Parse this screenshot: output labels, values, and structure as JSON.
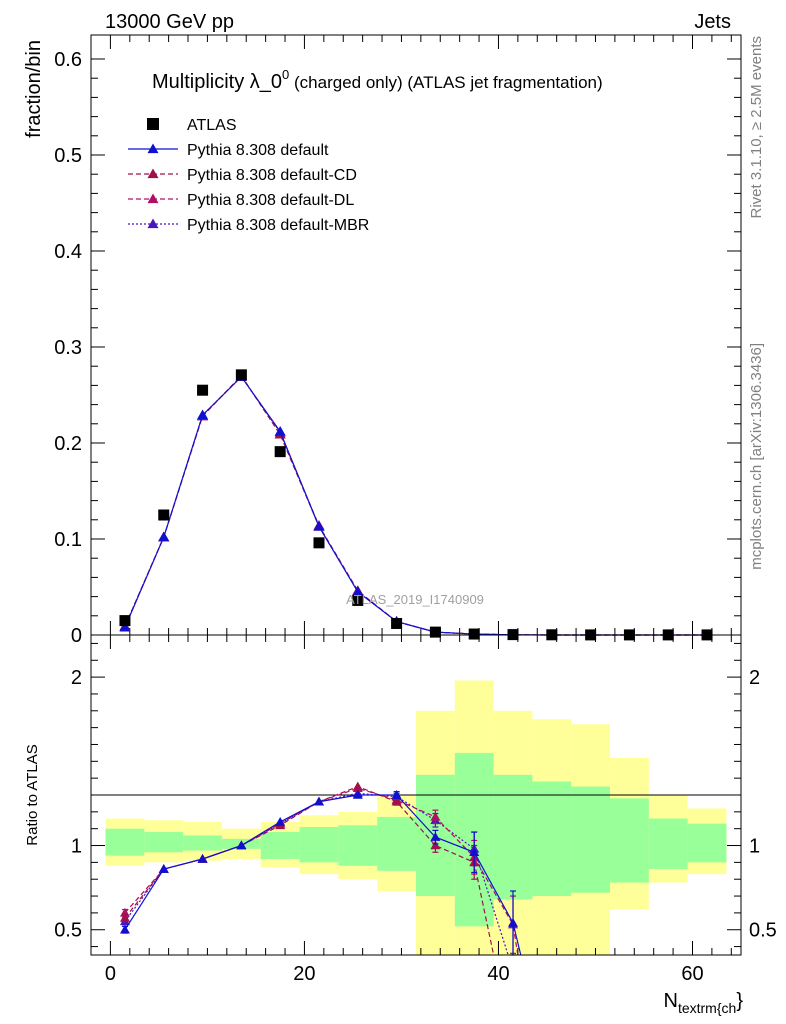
{
  "header": {
    "left": "13000 GeV pp",
    "right": "Jets"
  },
  "side_labels": {
    "rivet": "Rivet 3.1.10, ≥ 2.5M events",
    "mcplots": "mcplots.cern.ch [arXiv:1306.3436]"
  },
  "watermark": "ATLAS_2019_I1740909",
  "colors": {
    "atlas": "#000000",
    "default": "#1010d0",
    "default_cd": "#a0104a",
    "default_dl": "#b01060",
    "default_mbr": "#4a18b8",
    "band_inner": "#99ff99",
    "band_outer": "#ffff99"
  },
  "chart_data": [
    {
      "type": "scatter",
      "title_main": "Multiplicity λ_0",
      "title_sup": "0",
      "title_rest": " (charged only) (ATLAS jet fragmentation)",
      "ylabel": "fraction/bin",
      "xlim": [
        -2,
        65
      ],
      "ylim": [
        0,
        0.625
      ],
      "yticks": [
        0,
        0.1,
        0.2,
        0.3,
        0.4,
        0.5,
        0.6
      ],
      "ytick_labels": [
        "0",
        "0.1",
        "0.2",
        "0.3",
        "0.4",
        "0.5",
        "0.6"
      ],
      "x": [
        1.5,
        5.5,
        9.5,
        13.5,
        17.5,
        21.5,
        25.5,
        29.5,
        33.5,
        37.5,
        41.5,
        45.5,
        49.5,
        53.5,
        57.5,
        61.5
      ],
      "legend": [
        "ATLAS",
        "Pythia 8.308 default",
        "Pythia 8.308 default-CD",
        "Pythia 8.308 default-DL",
        "Pythia 8.308 default-MBR"
      ],
      "legend_position": "top-left",
      "series": [
        {
          "name": "ATLAS",
          "style": "marker",
          "values": [
            0.015,
            0.125,
            0.255,
            0.271,
            0.191,
            0.096,
            0.036,
            0.012,
            0.003,
            0.001,
            0.0004,
            0.0002,
            0.0001,
            0.0001,
            0.0001,
            0.0001
          ]
        },
        {
          "name": "Pythia 8.308 default",
          "style": "solid",
          "values": [
            0.008,
            0.102,
            0.229,
            0.269,
            0.212,
            0.113,
            0.045,
            0.014,
            0.003,
            0.001,
            0.0002,
            0,
            0,
            0,
            0,
            0
          ]
        },
        {
          "name": "Pythia 8.308 default-CD",
          "style": "dashed",
          "values": [
            0.009,
            0.102,
            0.228,
            0.27,
            0.209,
            0.113,
            0.046,
            0.014,
            0.003,
            0.001,
            0.0002,
            0,
            0,
            0,
            0,
            0
          ]
        },
        {
          "name": "Pythia 8.308 default-DL",
          "style": "dashed",
          "values": [
            0.009,
            0.102,
            0.228,
            0.27,
            0.209,
            0.114,
            0.046,
            0.014,
            0.003,
            0.001,
            0.0002,
            0,
            0,
            0,
            0,
            0
          ]
        },
        {
          "name": "Pythia 8.308 default-MBR",
          "style": "dotted",
          "values": [
            0.009,
            0.102,
            0.229,
            0.269,
            0.211,
            0.113,
            0.045,
            0.014,
            0.003,
            0.001,
            0.0002,
            0,
            0,
            0,
            0,
            0
          ]
        }
      ]
    },
    {
      "type": "line",
      "ylabel": "Ratio to ATLAS",
      "xlabel_main": "N",
      "xlabel_sub": "textrm{ch",
      "xlabel_tail": "}",
      "xlim": [
        -2,
        65
      ],
      "ylim": [
        0.35,
        2.25
      ],
      "yticks": [
        0.5,
        1,
        2
      ],
      "ytick_labels": [
        "0.5",
        "1",
        "2"
      ],
      "xticks": [
        0,
        20,
        40,
        60
      ],
      "xtick_labels": [
        "0",
        "20",
        "40",
        "60"
      ],
      "bins": [
        [
          -0.5,
          3.5
        ],
        [
          3.5,
          7.5
        ],
        [
          7.5,
          11.5
        ],
        [
          11.5,
          15.5
        ],
        [
          15.5,
          19.5
        ],
        [
          19.5,
          23.5
        ],
        [
          23.5,
          27.5
        ],
        [
          27.5,
          31.5
        ],
        [
          31.5,
          35.5
        ],
        [
          35.5,
          39.5
        ],
        [
          39.5,
          43.5
        ],
        [
          43.5,
          47.5
        ],
        [
          47.5,
          51.5
        ],
        [
          51.5,
          55.5
        ],
        [
          55.5,
          59.5
        ],
        [
          59.5,
          63.5
        ]
      ],
      "band_inner": [
        [
          0.94,
          1.1
        ],
        [
          0.96,
          1.08
        ],
        [
          0.97,
          1.06
        ],
        [
          0.98,
          1.04
        ],
        [
          0.92,
          1.08
        ],
        [
          0.9,
          1.11
        ],
        [
          0.88,
          1.12
        ],
        [
          0.85,
          1.17
        ],
        [
          0.7,
          1.42
        ],
        [
          0.52,
          1.55
        ],
        [
          0.68,
          1.42
        ],
        [
          0.7,
          1.38
        ],
        [
          0.72,
          1.35
        ],
        [
          0.78,
          1.28
        ],
        [
          0.86,
          1.16
        ],
        [
          0.9,
          1.13
        ]
      ],
      "band_outer": [
        [
          0.88,
          1.16
        ],
        [
          0.9,
          1.15
        ],
        [
          0.91,
          1.14
        ],
        [
          0.92,
          1.1
        ],
        [
          0.87,
          1.14
        ],
        [
          0.83,
          1.18
        ],
        [
          0.8,
          1.2
        ],
        [
          0.73,
          1.3
        ],
        [
          0.35,
          1.8
        ],
        [
          0.35,
          1.98
        ],
        [
          0.35,
          1.8
        ],
        [
          0.35,
          1.75
        ],
        [
          0.35,
          1.72
        ],
        [
          0.62,
          1.52
        ],
        [
          0.78,
          1.3
        ],
        [
          0.83,
          1.22
        ]
      ],
      "series": [
        {
          "name": "Pythia 8.308 default",
          "style": "solid",
          "x": [
            1.5,
            5.5,
            9.5,
            13.5,
            17.5,
            21.5,
            25.5,
            29.5,
            33.5,
            37.5,
            41.5,
            42.3
          ],
          "values": [
            0.5,
            0.86,
            0.92,
            1.0,
            1.14,
            1.26,
            1.3,
            1.3,
            1.05,
            0.96,
            0.54,
            0.35
          ],
          "errors": [
            0.02,
            0.01,
            0.01,
            0.01,
            0.01,
            0.01,
            0.01,
            0.02,
            0.04,
            0.12,
            0.19,
            0
          ]
        },
        {
          "name": "Pythia 8.308 default-CD",
          "style": "dashed",
          "x": [
            1.5,
            5.5,
            9.5,
            13.5,
            17.5,
            21.5,
            25.5,
            29.5,
            33.5,
            37.5,
            39.5
          ],
          "values": [
            0.57,
            0.86,
            0.92,
            1.0,
            1.12,
            1.26,
            1.35,
            1.26,
            1.0,
            0.9,
            0.35
          ],
          "errors": [
            0.02,
            0.01,
            0.01,
            0.01,
            0.01,
            0.01,
            0.01,
            0.02,
            0.04,
            0.1,
            0
          ]
        },
        {
          "name": "Pythia 8.308 default-DL",
          "style": "dashed",
          "x": [
            1.5,
            5.5,
            9.5,
            13.5,
            17.5,
            21.5,
            25.5,
            29.5,
            33.5,
            37.5,
            41.5,
            42.0
          ],
          "values": [
            0.6,
            0.86,
            0.92,
            1.0,
            1.13,
            1.26,
            1.34,
            1.27,
            1.17,
            0.93,
            0.53,
            0.35
          ],
          "errors": [
            0.02,
            0.01,
            0.01,
            0.01,
            0.01,
            0.01,
            0.01,
            0.02,
            0.04,
            0.1,
            0.17,
            0
          ]
        },
        {
          "name": "Pythia 8.308 default-MBR",
          "style": "dotted",
          "x": [
            1.5,
            5.5,
            9.5,
            13.5,
            17.5,
            21.5,
            25.5,
            29.5,
            33.5,
            37.5,
            41.0
          ],
          "values": [
            0.55,
            0.86,
            0.92,
            1.0,
            1.13,
            1.26,
            1.31,
            1.29,
            1.15,
            0.98,
            0.35
          ],
          "errors": [
            0.02,
            0.01,
            0.01,
            0.01,
            0.01,
            0.01,
            0.01,
            0.02,
            0.04,
            0.1,
            0
          ]
        }
      ]
    }
  ]
}
